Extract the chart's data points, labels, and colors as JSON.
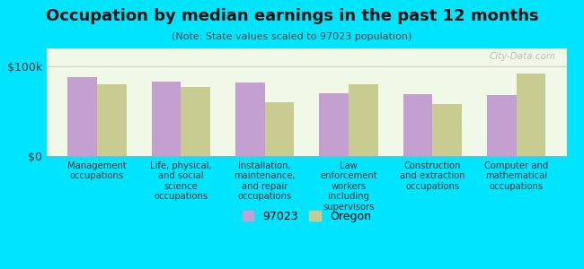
{
  "title": "Occupation by median earnings in the past 12 months",
  "subtitle": "(Note: State values scaled to 97023 population)",
  "categories": [
    "Management\noccupations",
    "Life, physical,\nand social\nscience\noccupations",
    "Installation,\nmaintenance,\nand repair\noccupations",
    "Law\nenforcement\nworkers\nincluding\nsupervisors",
    "Construction\nand extraction\noccupations",
    "Computer and\nmathematical\noccupations"
  ],
  "values_97023": [
    88000,
    83000,
    82000,
    70000,
    69000,
    68000
  ],
  "values_oregon": [
    80000,
    77000,
    60000,
    80000,
    58000,
    92000
  ],
  "color_97023": "#c4a0d0",
  "color_oregon": "#c8cc90",
  "background_outer": "#00e5ff",
  "background_chart": "#f0f8e8",
  "ytick_labels": [
    "$0",
    "$100k"
  ],
  "ytick_values": [
    0,
    100000
  ],
  "ylim": [
    0,
    120000
  ],
  "legend_label_97023": "97023",
  "legend_label_oregon": "Oregon",
  "watermark": "City-Data.com",
  "bar_width": 0.35
}
